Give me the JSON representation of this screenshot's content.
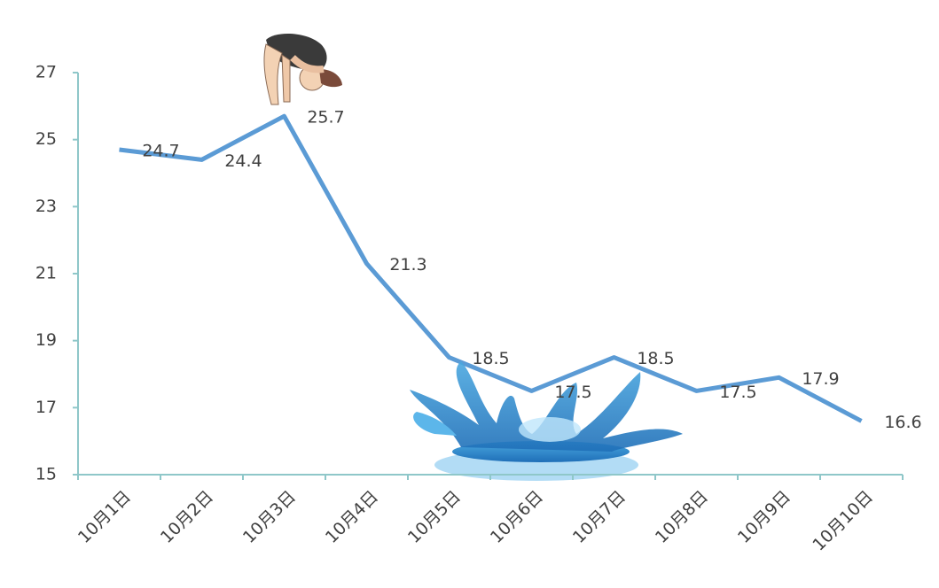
{
  "chart_data": {
    "type": "line",
    "categories": [
      "10月1日",
      "10月2日",
      "10月3日",
      "10月4日",
      "10月5日",
      "10月6日",
      "10月7日",
      "10月8日",
      "10月9日",
      "10月10日"
    ],
    "values": [
      24.7,
      24.4,
      25.7,
      21.3,
      18.5,
      17.5,
      18.5,
      17.5,
      17.9,
      16.6
    ],
    "color": "#5b9bd5",
    "ylim": [
      15,
      27
    ],
    "yticks": [
      15,
      17,
      19,
      21,
      23,
      25,
      27
    ],
    "grid": false
  }
}
